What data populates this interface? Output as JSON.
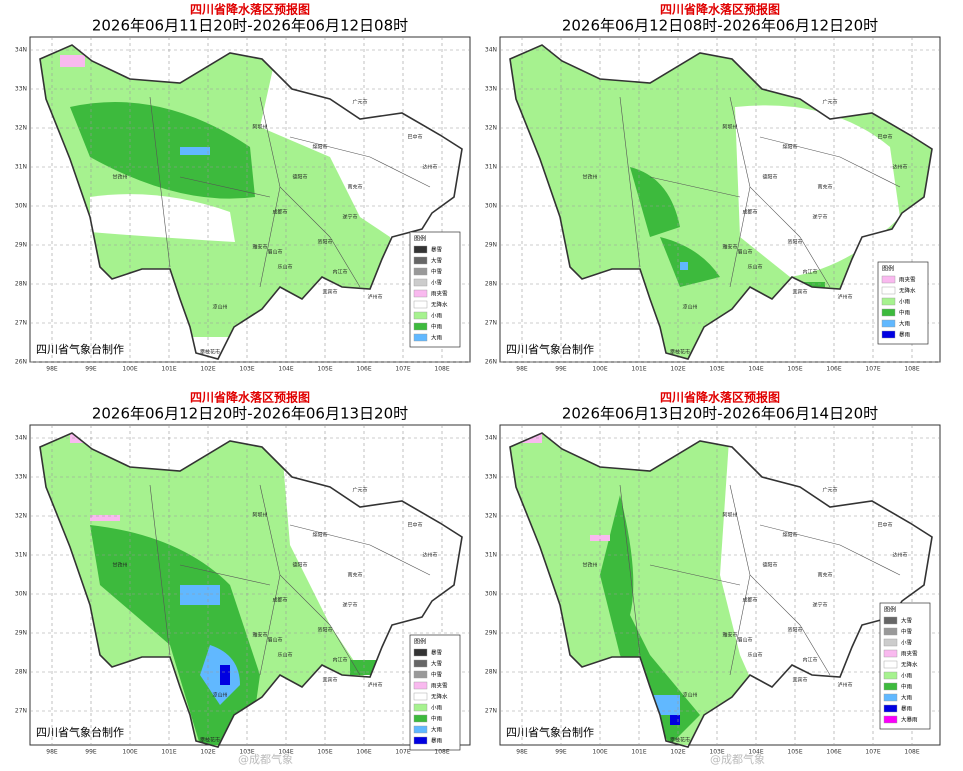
{
  "panels": [
    {
      "title": "四川省降水落区预报图",
      "subtitle": "2026年06月11日20时-2026年06月12日08时",
      "legend_title": "图例",
      "legend": [
        {
          "name": "暴雪",
          "color": "#333333"
        },
        {
          "name": "大雪",
          "color": "#666666"
        },
        {
          "name": "中雪",
          "color": "#999999"
        },
        {
          "name": "小雪",
          "color": "#cccccc"
        },
        {
          "name": "雨夹雪",
          "color": "#f9b9ef"
        },
        {
          "name": "无降水",
          "color": "#ffffff"
        },
        {
          "name": "小雨",
          "color": "#a6f28f"
        },
        {
          "name": "中雨",
          "color": "#3dba3d"
        },
        {
          "name": "大雨",
          "color": "#61b8ff"
        }
      ],
      "footer": "四川省气象台制作"
    },
    {
      "title": "四川省降水落区预报图",
      "subtitle": "2026年06月12日08时-2026年06月12日20时",
      "legend_title": "图例",
      "legend": [
        {
          "name": "雨夹雪",
          "color": "#f9b9ef"
        },
        {
          "name": "无降水",
          "color": "#ffffff"
        },
        {
          "name": "小雨",
          "color": "#a6f28f"
        },
        {
          "name": "中雨",
          "color": "#3dba3d"
        },
        {
          "name": "大雨",
          "color": "#61b8ff"
        },
        {
          "name": "暴雨",
          "color": "#0000e1"
        }
      ],
      "footer": "四川省气象台制作"
    },
    {
      "title": "四川省降水落区预报图",
      "subtitle": "2026年06月12日20时-2026年06月13日20时",
      "legend_title": "图例",
      "legend": [
        {
          "name": "暴雪",
          "color": "#333333"
        },
        {
          "name": "大雪",
          "color": "#666666"
        },
        {
          "name": "中雪",
          "color": "#999999"
        },
        {
          "name": "雨夹雪",
          "color": "#f9b9ef"
        },
        {
          "name": "无降水",
          "color": "#ffffff"
        },
        {
          "name": "小雨",
          "color": "#a6f28f"
        },
        {
          "name": "中雨",
          "color": "#3dba3d"
        },
        {
          "name": "大雨",
          "color": "#61b8ff"
        },
        {
          "name": "暴雨",
          "color": "#0000e1"
        }
      ],
      "footer": "四川省气象台制作"
    },
    {
      "title": "四川省降水落区预报图",
      "subtitle": "2026年06月13日20时-2026年06月14日20时",
      "legend_title": "图例",
      "legend": [
        {
          "name": "大雪",
          "color": "#666666"
        },
        {
          "name": "中雪",
          "color": "#999999"
        },
        {
          "name": "小雪",
          "color": "#cccccc"
        },
        {
          "name": "雨夹雪",
          "color": "#f9b9ef"
        },
        {
          "name": "无降水",
          "color": "#ffffff"
        },
        {
          "name": "小雨",
          "color": "#a6f28f"
        },
        {
          "name": "中雨",
          "color": "#3dba3d"
        },
        {
          "name": "大雨",
          "color": "#61b8ff"
        },
        {
          "name": "暴雨",
          "color": "#0000e1"
        },
        {
          "name": "大暴雨",
          "color": "#fa00fa"
        }
      ],
      "footer": "四川省气象台制作"
    }
  ],
  "lat_labels": [
    "34N",
    "33N",
    "32N",
    "31N",
    "30N",
    "29N",
    "28N",
    "27N",
    "26N"
  ],
  "lon_labels": [
    "98E",
    "99E",
    "100E",
    "101E",
    "102E",
    "103E",
    "104E",
    "105E",
    "106E",
    "107E",
    "108E"
  ],
  "map_labels": [
    "阿坝州",
    "甘孜州",
    "凉山州",
    "成都市",
    "雅安市",
    "乐山市",
    "广元市",
    "巴中市",
    "达州市",
    "绵阳市",
    "德阳市",
    "南充市",
    "遂宁市",
    "资阳市",
    "内江市",
    "宜宾市",
    "泸州市",
    "眉山市",
    "攀枝花市"
  ],
  "watermark": "@成都气象"
}
